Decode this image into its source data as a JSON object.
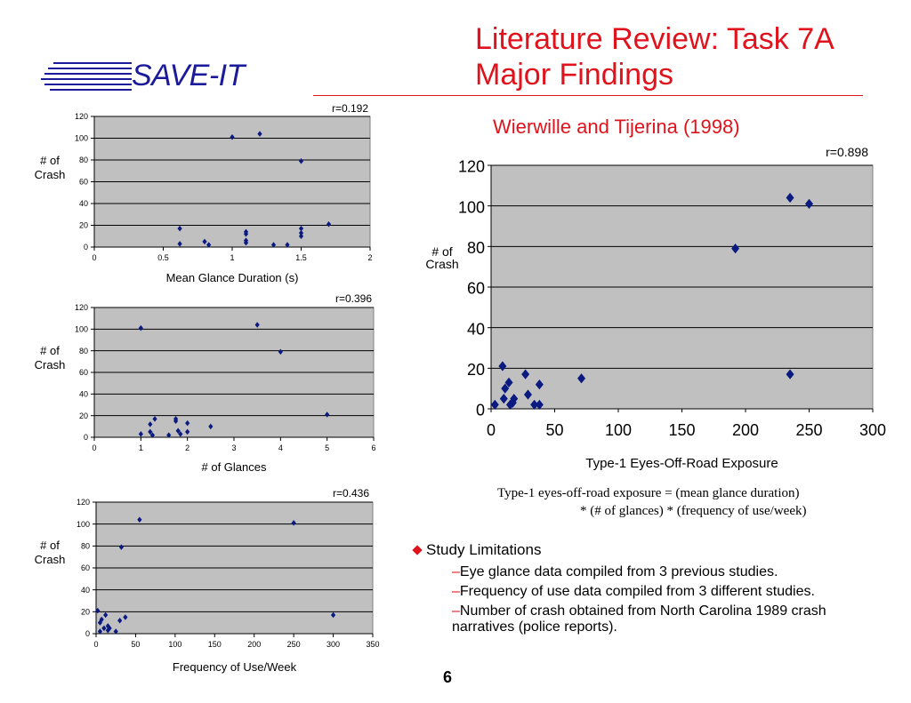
{
  "header": {
    "logo_text": "SAVE-IT",
    "title_line1": "Literature Review: Task 7A",
    "title_line2": "Major Findings",
    "subtitle": "Wierwille and Tijerina (1998)"
  },
  "colors": {
    "title": "#e0121b",
    "logo": "#1a1a9a",
    "marker": "#0a1a80",
    "plot_bg": "#c0c0c0"
  },
  "chart_data": [
    {
      "type": "scatter",
      "r_label": "r=0.192",
      "xlabel": "Mean Glance Duration (s)",
      "ylabel": "# of Crash",
      "xlim": [
        0,
        2
      ],
      "ylim": [
        0,
        120
      ],
      "xticks": [
        0,
        0.5,
        1,
        1.5,
        2
      ],
      "xtick_labels": [
        "0",
        "0.5",
        "1",
        "1.5",
        "2"
      ],
      "yticks": [
        0,
        20,
        40,
        60,
        80,
        100,
        120
      ],
      "grid": true,
      "points": [
        [
          0.62,
          3
        ],
        [
          0.62,
          17
        ],
        [
          0.8,
          5
        ],
        [
          0.83,
          2
        ],
        [
          1.0,
          101
        ],
        [
          1.1,
          4
        ],
        [
          1.1,
          6
        ],
        [
          1.1,
          12
        ],
        [
          1.1,
          14
        ],
        [
          1.2,
          104
        ],
        [
          1.3,
          2
        ],
        [
          1.4,
          2
        ],
        [
          1.5,
          10
        ],
        [
          1.5,
          13
        ],
        [
          1.5,
          17
        ],
        [
          1.5,
          79
        ],
        [
          1.7,
          21
        ]
      ]
    },
    {
      "type": "scatter",
      "r_label": "r=0.396",
      "xlabel": "# of Glances",
      "ylabel": "# of Crash",
      "xlim": [
        0,
        6
      ],
      "ylim": [
        0,
        120
      ],
      "xticks": [
        0,
        1,
        2,
        3,
        4,
        5,
        6
      ],
      "xtick_labels": [
        "0",
        "1",
        "2",
        "3",
        "4",
        "5",
        "6"
      ],
      "yticks": [
        0,
        20,
        40,
        60,
        80,
        100,
        120
      ],
      "grid": true,
      "points": [
        [
          1.0,
          3
        ],
        [
          1.0,
          101
        ],
        [
          1.2,
          5
        ],
        [
          1.2,
          12
        ],
        [
          1.25,
          2
        ],
        [
          1.3,
          17
        ],
        [
          1.6,
          2
        ],
        [
          1.75,
          15
        ],
        [
          1.75,
          17
        ],
        [
          1.8,
          6
        ],
        [
          1.85,
          3
        ],
        [
          2.0,
          5
        ],
        [
          2.0,
          13
        ],
        [
          2.5,
          10
        ],
        [
          3.5,
          104
        ],
        [
          4.0,
          79
        ],
        [
          5.0,
          21
        ]
      ]
    },
    {
      "type": "scatter",
      "r_label": "r=0.436",
      "xlabel": "Frequency of Use/Week",
      "ylabel": "# of Crash",
      "xlim": [
        0,
        350
      ],
      "ylim": [
        0,
        120
      ],
      "xticks": [
        0,
        50,
        100,
        150,
        200,
        250,
        300,
        350
      ],
      "xtick_labels": [
        "0",
        "50",
        "100",
        "150",
        "200",
        "250",
        "300",
        "350"
      ],
      "yticks": [
        0,
        20,
        40,
        60,
        80,
        100,
        120
      ],
      "grid": true,
      "points": [
        [
          2,
          21
        ],
        [
          5,
          2
        ],
        [
          5,
          10
        ],
        [
          7,
          13
        ],
        [
          10,
          5
        ],
        [
          12,
          17
        ],
        [
          15,
          3
        ],
        [
          15,
          7
        ],
        [
          17,
          5
        ],
        [
          25,
          2
        ],
        [
          30,
          12
        ],
        [
          32,
          79
        ],
        [
          37,
          15
        ],
        [
          55,
          104
        ],
        [
          250,
          101
        ],
        [
          300,
          17
        ]
      ]
    },
    {
      "type": "scatter",
      "r_label": "r=0.898",
      "xlabel": "Type-1 Eyes-Off-Road Exposure",
      "ylabel": "# of Crash",
      "xlim": [
        0,
        300
      ],
      "ylim": [
        0,
        120
      ],
      "xticks": [
        0,
        50,
        100,
        150,
        200,
        250,
        300
      ],
      "xtick_labels": [
        "0",
        "50",
        "100",
        "150",
        "200",
        "250",
        "300"
      ],
      "yticks": [
        0,
        20,
        40,
        60,
        80,
        100,
        120
      ],
      "grid": true,
      "points": [
        [
          3,
          2
        ],
        [
          9,
          21
        ],
        [
          10,
          5
        ],
        [
          11,
          10
        ],
        [
          14,
          13
        ],
        [
          15,
          2
        ],
        [
          17,
          3
        ],
        [
          18,
          5
        ],
        [
          27,
          17
        ],
        [
          29,
          7
        ],
        [
          34,
          2
        ],
        [
          38,
          2
        ],
        [
          38,
          12
        ],
        [
          71,
          15
        ],
        [
          192,
          79
        ],
        [
          235,
          104
        ],
        [
          235,
          17
        ],
        [
          250,
          101
        ]
      ]
    }
  ],
  "formula": {
    "line1": "Type-1 eyes-off-road exposure = (mean glance duration)",
    "line2": "* (# of glances) * (frequency of use/week)"
  },
  "limitations": {
    "heading": "Study Limitations",
    "items": [
      "Eye glance data compiled from 3 previous studies.",
      "Frequency of use data compiled from 3 different studies.",
      "Number of crash obtained from North Carolina 1989 crash narratives (police reports)."
    ]
  },
  "page_number": "6"
}
